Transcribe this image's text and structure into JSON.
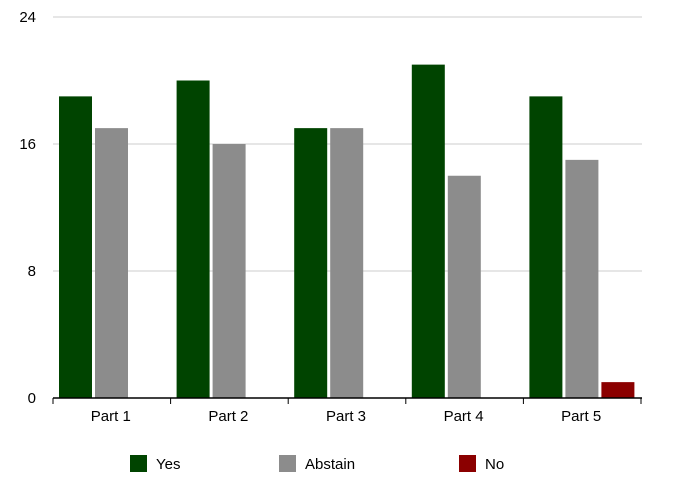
{
  "chart_data": {
    "type": "bar",
    "title": "",
    "xlabel": "",
    "ylabel": "",
    "categories": [
      "Part 1",
      "Part 2",
      "Part 3",
      "Part 4",
      "Part 5"
    ],
    "series": [
      {
        "name": "Yes",
        "color": "#004400",
        "values": [
          19,
          20,
          17,
          21,
          19
        ]
      },
      {
        "name": "Abstain",
        "color": "#8c8c8c",
        "values": [
          17,
          16,
          17,
          14,
          15
        ]
      },
      {
        "name": "No",
        "color": "#8b0000",
        "values": [
          0,
          0,
          0,
          0,
          1
        ]
      }
    ],
    "ylim": [
      0,
      24
    ],
    "yticks": [
      0,
      8,
      16,
      24
    ],
    "grid": true,
    "legend_position": "bottom"
  }
}
